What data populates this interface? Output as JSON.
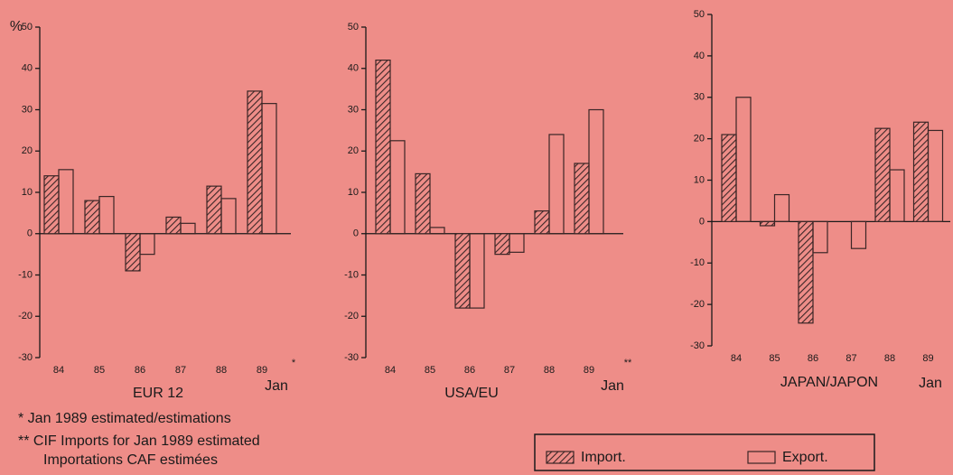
{
  "chart_data": [
    {
      "type": "bar",
      "subtitle": "EUR 12",
      "y_label": "%",
      "categories": [
        "84",
        "85",
        "86",
        "87",
        "88",
        "89"
      ],
      "annotations": [
        "Jan",
        "*"
      ],
      "series": [
        {
          "name": "Import.",
          "color": "#3a2626",
          "hatch": true,
          "values": [
            14,
            8,
            -9,
            4,
            11.5,
            34.5
          ]
        },
        {
          "name": "Export.",
          "color": "#3a2626",
          "hatch": false,
          "values": [
            15.5,
            9,
            -5,
            2.5,
            8.5,
            31.5
          ]
        }
      ],
      "ylim": [
        -30,
        50
      ],
      "yticks": [
        -30,
        -20,
        -10,
        0,
        10,
        20,
        30,
        40,
        50
      ]
    },
    {
      "type": "bar",
      "subtitle": "USA/EU",
      "categories": [
        "84",
        "85",
        "86",
        "87",
        "88",
        "89"
      ],
      "annotations": [
        "Jan",
        "**"
      ],
      "series": [
        {
          "name": "Import.",
          "color": "#3a2626",
          "hatch": true,
          "values": [
            42,
            14.5,
            -18,
            -5,
            5.5,
            17
          ]
        },
        {
          "name": "Export.",
          "color": "#3a2626",
          "hatch": false,
          "values": [
            22.5,
            1.5,
            -18,
            -4.5,
            24,
            30
          ]
        }
      ],
      "ylim": [
        -30,
        50
      ],
      "yticks": [
        -30,
        -20,
        -10,
        0,
        10,
        20,
        30,
        40,
        50
      ]
    },
    {
      "type": "bar",
      "subtitle": "JAPAN/JAPON",
      "categories": [
        "84",
        "85",
        "86",
        "87",
        "88",
        "89"
      ],
      "annotations": [
        "Jan"
      ],
      "series": [
        {
          "name": "Import.",
          "color": "#3a2626",
          "hatch": true,
          "values": [
            21,
            -1,
            -24.5,
            0,
            22.5,
            24
          ]
        },
        {
          "name": "Export.",
          "color": "#3a2626",
          "hatch": false,
          "values": [
            30,
            6.5,
            -7.5,
            -6.5,
            12.5,
            22
          ]
        }
      ],
      "ylim": [
        -30,
        50
      ],
      "yticks": [
        -30,
        -20,
        -10,
        0,
        10,
        20,
        30,
        40,
        50
      ]
    }
  ],
  "legend": {
    "position": "bottom-right"
  },
  "notes": [
    "*  Jan 1989 estimated/estimations",
    "** CIF Imports for Jan 1989 estimated",
    "Importations CAF estimées"
  ]
}
